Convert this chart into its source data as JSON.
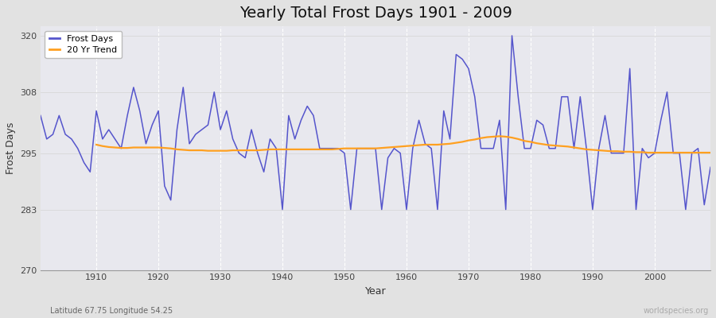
{
  "title": "Yearly Total Frost Days 1901 - 2009",
  "xlabel": "Year",
  "ylabel": "Frost Days",
  "subtitle_left": "Latitude 67.75 Longitude 54.25",
  "subtitle_right": "worldspecies.org",
  "years": [
    1901,
    1902,
    1903,
    1904,
    1905,
    1906,
    1907,
    1908,
    1909,
    1910,
    1911,
    1912,
    1913,
    1914,
    1915,
    1916,
    1917,
    1918,
    1919,
    1920,
    1921,
    1922,
    1923,
    1924,
    1925,
    1926,
    1927,
    1928,
    1929,
    1930,
    1931,
    1932,
    1933,
    1934,
    1935,
    1936,
    1937,
    1938,
    1939,
    1940,
    1941,
    1942,
    1943,
    1944,
    1945,
    1946,
    1947,
    1948,
    1949,
    1950,
    1951,
    1952,
    1953,
    1954,
    1955,
    1956,
    1957,
    1958,
    1959,
    1960,
    1961,
    1962,
    1963,
    1964,
    1965,
    1966,
    1967,
    1968,
    1969,
    1970,
    1971,
    1972,
    1973,
    1974,
    1975,
    1976,
    1977,
    1978,
    1979,
    1980,
    1981,
    1982,
    1983,
    1984,
    1985,
    1986,
    1987,
    1988,
    1989,
    1990,
    1991,
    1992,
    1993,
    1994,
    1995,
    1996,
    1997,
    1998,
    1999,
    2000,
    2001,
    2002,
    2003,
    2004,
    2005,
    2006,
    2007,
    2008,
    2009
  ],
  "frost_days": [
    303,
    298,
    299,
    303,
    299,
    298,
    296,
    293,
    291,
    304,
    298,
    300,
    298,
    296,
    303,
    309,
    304,
    297,
    301,
    304,
    288,
    285,
    300,
    309,
    297,
    299,
    300,
    301,
    308,
    300,
    304,
    298,
    295,
    294,
    300,
    295,
    291,
    298,
    296,
    283,
    303,
    298,
    302,
    305,
    303,
    296,
    296,
    296,
    296,
    295,
    283,
    296,
    296,
    296,
    296,
    283,
    294,
    296,
    295,
    283,
    296,
    302,
    297,
    296,
    283,
    304,
    298,
    316,
    315,
    313,
    307,
    296,
    296,
    296,
    302,
    283,
    320,
    307,
    296,
    296,
    302,
    301,
    296,
    296,
    307,
    307,
    296,
    307,
    296,
    283,
    296,
    303,
    295,
    295,
    295,
    313,
    283,
    296,
    294,
    295,
    302,
    308,
    295,
    295,
    283,
    295,
    296,
    284,
    292
  ],
  "trend_years": [
    1910,
    1911,
    1912,
    1913,
    1914,
    1915,
    1916,
    1917,
    1918,
    1919,
    1920,
    1921,
    1922,
    1923,
    1924,
    1925,
    1926,
    1927,
    1928,
    1929,
    1930,
    1931,
    1932,
    1933,
    1934,
    1935,
    1936,
    1937,
    1938,
    1939,
    1940,
    1941,
    1942,
    1943,
    1944,
    1945,
    1946,
    1947,
    1948,
    1949,
    1950,
    1951,
    1952,
    1953,
    1954,
    1955,
    1956,
    1957,
    1958,
    1959,
    1960,
    1961,
    1962,
    1963,
    1964,
    1965,
    1966,
    1967,
    1968,
    1969,
    1970,
    1971,
    1972,
    1973,
    1974,
    1975,
    1976,
    1977,
    1978,
    1979,
    1980,
    1981,
    1982,
    1983,
    1984,
    1985,
    1986,
    1987,
    1988,
    1989,
    1990,
    1991,
    1992,
    1993,
    1994,
    1995,
    1996,
    1997,
    1998,
    1999,
    2000,
    2001,
    2002,
    2003,
    2004,
    2005,
    2006,
    2007,
    2008,
    2009
  ],
  "trend_values": [
    296.8,
    296.5,
    296.3,
    296.2,
    296.1,
    296.1,
    296.2,
    296.2,
    296.2,
    296.2,
    296.2,
    296.1,
    296.0,
    295.8,
    295.7,
    295.6,
    295.6,
    295.6,
    295.5,
    295.5,
    295.5,
    295.5,
    295.6,
    295.6,
    295.6,
    295.6,
    295.6,
    295.7,
    295.8,
    295.8,
    295.8,
    295.8,
    295.8,
    295.8,
    295.8,
    295.8,
    295.8,
    295.8,
    295.8,
    295.9,
    296.0,
    296.0,
    296.0,
    296.0,
    296.0,
    296.0,
    296.1,
    296.2,
    296.3,
    296.4,
    296.5,
    296.6,
    296.7,
    296.8,
    296.8,
    296.8,
    296.9,
    297.0,
    297.2,
    297.4,
    297.7,
    297.9,
    298.2,
    298.4,
    298.5,
    298.6,
    298.5,
    298.3,
    298.0,
    297.6,
    297.4,
    297.1,
    296.9,
    296.7,
    296.6,
    296.5,
    296.4,
    296.2,
    296.0,
    295.8,
    295.7,
    295.6,
    295.5,
    295.4,
    295.4,
    295.3,
    295.3,
    295.2,
    295.2,
    295.1,
    295.1,
    295.1,
    295.1,
    295.1,
    295.1,
    295.1,
    295.1,
    295.1,
    295.1,
    295.1
  ],
  "ylim_min": 270,
  "ylim_max": 322,
  "yticks": [
    270,
    283,
    295,
    308,
    320
  ],
  "xticks": [
    1910,
    1920,
    1930,
    1940,
    1950,
    1960,
    1970,
    1980,
    1990,
    2000
  ],
  "xmin": 1901,
  "xmax": 2009,
  "frost_color": "#5555cc",
  "trend_color": "#ffa020",
  "bg_color": "#e2e2e2",
  "plot_bg_color": "#e8e8ee",
  "grid_x_color": "#ffffff",
  "grid_y_color": "#d8d8d8",
  "title_fontsize": 14,
  "axis_label_fontsize": 9,
  "tick_fontsize": 8,
  "legend_fontsize": 8,
  "frost_linewidth": 1.1,
  "trend_linewidth": 1.6
}
